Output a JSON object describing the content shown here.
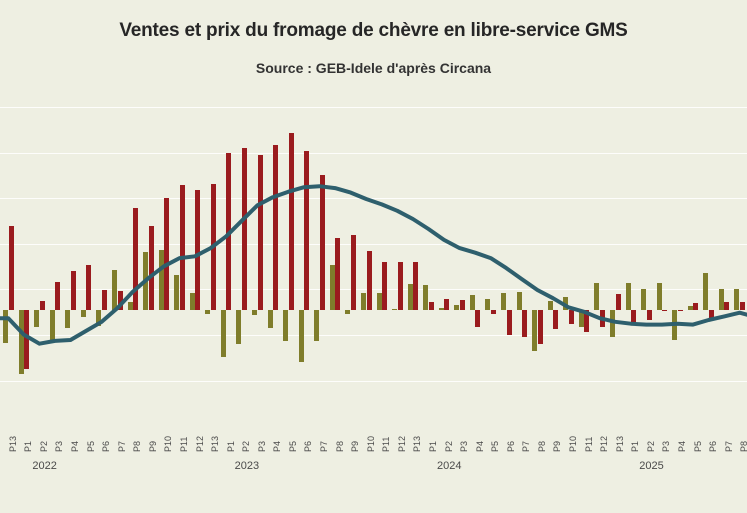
{
  "header": {
    "title": "Ventes et prix du fromage de chèvre en libre-service GMS",
    "subtitle": "Source : GEB-Idele d'après Circana"
  },
  "colors": {
    "background": "#eeefe2",
    "bar_olive": "#7f7d2b",
    "bar_red": "#9a1b1e",
    "line": "#2e5f6d",
    "gridline": "#f9f9f1",
    "axis_text": "#4a4a4a",
    "title_text": "#262626"
  },
  "chart_data": {
    "type": "bar",
    "subtype": "grouped bars with overlaid line (combo chart)",
    "title": "Ventes et prix du fromage de chèvre en libre-service GMS",
    "subtitle": "Source : GEB-Idele d'après Circana",
    "xlabel": "",
    "ylabel": "",
    "y_axis_labels_visible": false,
    "legend": "none",
    "grid": "faint horizontal gridlines",
    "ylim": [
      -12.5,
      23
    ],
    "x_categories": [
      "P13",
      "P1",
      "P2",
      "P3",
      "P4",
      "P5",
      "P6",
      "P7",
      "P8",
      "P9",
      "P10",
      "P11",
      "P12",
      "P13",
      "P1",
      "P2",
      "P3",
      "P4",
      "P5",
      "P6",
      "P7",
      "P8",
      "P9",
      "P10",
      "P11",
      "P12",
      "P13",
      "P1",
      "P2",
      "P3",
      "P4",
      "P5",
      "P6",
      "P7",
      "P8",
      "P9",
      "P10",
      "P11",
      "P12",
      "P13",
      "P1",
      "P2",
      "P3",
      "P4",
      "P5",
      "P6",
      "P7",
      "P8"
    ],
    "year_markers": [
      {
        "label": "2022",
        "at_index": 1
      },
      {
        "label": "2023",
        "at_index": 14
      },
      {
        "label": "2024",
        "at_index": 27
      },
      {
        "label": "2025",
        "at_index": 40
      }
    ],
    "series": [
      {
        "name": "serie-barres-olive",
        "type": "bar",
        "color": "#7f7d2b",
        "values": [
          -3.6,
          -7.0,
          -1.9,
          -3.3,
          -2.0,
          -0.8,
          -1.8,
          4.4,
          0.9,
          6.4,
          6.6,
          3.8,
          1.9,
          -0.4,
          -5.2,
          -3.7,
          -0.5,
          -2.0,
          -3.4,
          -5.7,
          -3.4,
          4.9,
          -0.4,
          1.9,
          1.9,
          0.1,
          2.9,
          2.7,
          0.2,
          0.5,
          1.6,
          1.2,
          1.9,
          2.0,
          -4.5,
          1.0,
          1.4,
          -1.9,
          3.0,
          -3.0,
          3.0,
          2.3,
          3.0,
          -3.3,
          0.4,
          4.1,
          2.3,
          2.3
        ]
      },
      {
        "name": "serie-barres-rouges",
        "type": "bar",
        "color": "#9a1b1e",
        "values": [
          9.2,
          -6.5,
          1.0,
          3.1,
          4.3,
          4.9,
          2.2,
          2.1,
          11.2,
          9.2,
          12.3,
          13.7,
          13.2,
          13.8,
          17.3,
          17.8,
          17.0,
          18.1,
          19.5,
          17.5,
          14.8,
          7.9,
          8.2,
          6.5,
          5.3,
          5.3,
          5.3,
          0.9,
          1.2,
          1.1,
          -1.9,
          -0.4,
          -2.7,
          -3.0,
          -3.7,
          -2.1,
          -1.5,
          -2.4,
          -1.9,
          1.8,
          -1.5,
          -1.1,
          -0.1,
          -0.1,
          0.8,
          -1.0,
          0.9,
          0.9
        ]
      },
      {
        "name": "serie-courbe",
        "type": "line",
        "color": "#2e5f6d",
        "values": [
          -0.9,
          -2.7,
          -3.7,
          -3.4,
          -3.3,
          -2.3,
          -1.3,
          0.2,
          2.0,
          3.5,
          4.8,
          5.7,
          5.9,
          6.8,
          8.1,
          9.8,
          11.5,
          12.4,
          13.0,
          13.5,
          13.6,
          13.4,
          12.9,
          12.2,
          11.6,
          10.9,
          10.0,
          8.9,
          7.7,
          6.8,
          6.3,
          5.7,
          4.6,
          3.4,
          2.2,
          1.3,
          0.3,
          -0.2,
          -0.9,
          -1.3,
          -1.5,
          -1.6,
          -1.6,
          -1.5,
          -1.6,
          -1.1,
          -0.7,
          -0.3
        ]
      }
    ]
  }
}
